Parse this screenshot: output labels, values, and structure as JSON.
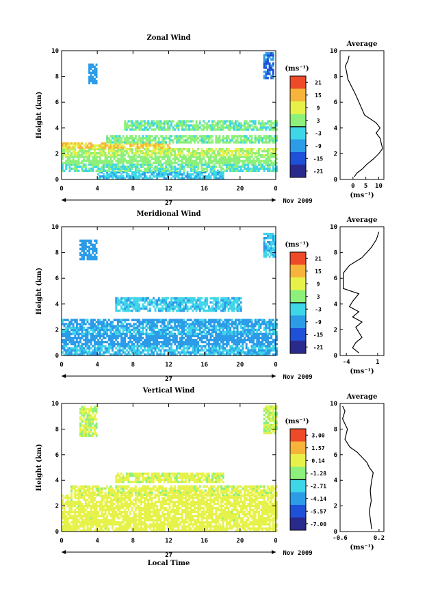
{
  "chart_data": [
    {
      "type": "heatmap",
      "title": "Zonal Wind",
      "ylabel": "Height (km)",
      "units": "(ms⁻¹)",
      "xlim": [
        0,
        24
      ],
      "ylim": [
        0,
        10
      ],
      "x_ticks": [
        "0",
        "4",
        "8",
        "12",
        "16",
        "20",
        "0"
      ],
      "y_ticks": [
        "0",
        "2",
        "4",
        "6",
        "8",
        "10"
      ],
      "date_label": "27",
      "month_label": "Nov 2009",
      "colorbar": {
        "levels": [
          "21",
          "15",
          "9",
          "3",
          "-3",
          "-9",
          "-15",
          "-21"
        ],
        "vmin": -24,
        "vmax": 24
      },
      "layers": [
        {
          "y0": 0.0,
          "y1": 0.6,
          "value": -5,
          "x0": 4,
          "x1": 18
        },
        {
          "y0": 0.6,
          "y1": 1.2,
          "value": 0,
          "x0": 0,
          "x1": 24
        },
        {
          "y0": 1.2,
          "y1": 1.8,
          "value": 3,
          "x0": 0,
          "x1": 24
        },
        {
          "y0": 1.8,
          "y1": 2.4,
          "value": 6,
          "x0": 0,
          "x1": 24
        },
        {
          "y0": 2.4,
          "y1": 2.8,
          "value": 12,
          "x0": 0,
          "x1": 12
        },
        {
          "y0": 2.8,
          "y1": 3.4,
          "value": 2,
          "x0": 5,
          "x1": 24
        },
        {
          "y0": 3.8,
          "y1": 4.6,
          "value": 1,
          "x0": 7,
          "x1": 24
        },
        {
          "y0": 7.4,
          "y1": 9.0,
          "value": -9,
          "x0": 3,
          "x1": 4
        },
        {
          "y0": 7.8,
          "y1": 9.8,
          "value": -12,
          "x0": 22.6,
          "x1": 23.6
        }
      ],
      "average": {
        "title": "Average",
        "xlim": [
          -5,
          12
        ],
        "x_ticks": [
          "0",
          "5",
          "10"
        ],
        "xlabel": "(ms⁻¹)",
        "profile": [
          {
            "h": 0.2,
            "v": 0.5
          },
          {
            "h": 0.5,
            "v": 1.5
          },
          {
            "h": 0.8,
            "v": 3.5
          },
          {
            "h": 1.2,
            "v": 5.5
          },
          {
            "h": 1.6,
            "v": 8
          },
          {
            "h": 2.0,
            "v": 10
          },
          {
            "h": 2.4,
            "v": 11.5
          },
          {
            "h": 2.8,
            "v": 11
          },
          {
            "h": 3.2,
            "v": 10.5
          },
          {
            "h": 3.6,
            "v": 9
          },
          {
            "h": 4.0,
            "v": 10.5
          },
          {
            "h": 4.4,
            "v": 9
          },
          {
            "h": 4.8,
            "v": 6
          },
          {
            "h": 5.0,
            "v": 4.5
          },
          {
            "h": 6.6,
            "v": 1
          },
          {
            "h": 7.2,
            "v": -0.5
          },
          {
            "h": 7.8,
            "v": -2
          },
          {
            "h": 8.4,
            "v": -2.5
          },
          {
            "h": 8.8,
            "v": -3
          },
          {
            "h": 9.2,
            "v": -2
          },
          {
            "h": 9.6,
            "v": -1.5
          }
        ]
      }
    },
    {
      "type": "heatmap",
      "title": "Meridional Wind",
      "ylabel": "Height (km)",
      "units": "(ms⁻¹)",
      "xlim": [
        0,
        24
      ],
      "ylim": [
        0,
        10
      ],
      "x_ticks": [
        "0",
        "4",
        "8",
        "12",
        "16",
        "20",
        "0"
      ],
      "y_ticks": [
        "0",
        "2",
        "4",
        "6",
        "8",
        "10"
      ],
      "date_label": "27",
      "month_label": "Nov 2009",
      "colorbar": {
        "levels": [
          "21",
          "15",
          "9",
          "3",
          "-3",
          "-9",
          "-15",
          "-21"
        ],
        "vmin": -24,
        "vmax": 24
      },
      "layers": [
        {
          "y0": 0.0,
          "y1": 0.8,
          "value": -6,
          "x0": 0,
          "x1": 24
        },
        {
          "y0": 0.8,
          "y1": 1.6,
          "value": -9,
          "x0": 0,
          "x1": 24
        },
        {
          "y0": 1.6,
          "y1": 2.2,
          "value": -6,
          "x0": 0,
          "x1": 24
        },
        {
          "y0": 2.2,
          "y1": 2.8,
          "value": -8,
          "x0": 0,
          "x1": 24
        },
        {
          "y0": 3.4,
          "y1": 4.4,
          "value": -5,
          "x0": 6,
          "x1": 20
        },
        {
          "y0": 7.4,
          "y1": 9.0,
          "value": -9,
          "x0": 2,
          "x1": 4
        },
        {
          "y0": 7.6,
          "y1": 9.4,
          "value": -5,
          "x0": 22.6,
          "x1": 23.8
        }
      ],
      "average": {
        "title": "Average",
        "xlim": [
          -5,
          2
        ],
        "x_ticks": [
          "-4",
          "1"
        ],
        "xlabel": "(ms⁻¹)",
        "profile": [
          {
            "h": 0.2,
            "v": -2
          },
          {
            "h": 0.6,
            "v": -3
          },
          {
            "h": 1.0,
            "v": -2.5
          },
          {
            "h": 1.4,
            "v": -1.5
          },
          {
            "h": 1.8,
            "v": -2
          },
          {
            "h": 2.2,
            "v": -2.5
          },
          {
            "h": 2.6,
            "v": -1.5
          },
          {
            "h": 3.0,
            "v": -3
          },
          {
            "h": 3.4,
            "v": -2
          },
          {
            "h": 3.8,
            "v": -3.5
          },
          {
            "h": 4.2,
            "v": -3
          },
          {
            "h": 4.8,
            "v": -2
          },
          {
            "h": 5.2,
            "v": -4.5
          },
          {
            "h": 6.4,
            "v": -4.5
          },
          {
            "h": 7.0,
            "v": -3.5
          },
          {
            "h": 7.6,
            "v": -1.5
          },
          {
            "h": 8.4,
            "v": 0
          },
          {
            "h": 9.0,
            "v": 0.8
          },
          {
            "h": 9.6,
            "v": 1.2
          }
        ]
      }
    },
    {
      "type": "heatmap",
      "title": "Vertical Wind",
      "ylabel": "Height (km)",
      "units": "(ms⁻¹)",
      "xlabel": "Local Time",
      "xlim": [
        0,
        24
      ],
      "ylim": [
        0,
        10
      ],
      "x_ticks": [
        "0",
        "4",
        "8",
        "12",
        "16",
        "20",
        "0"
      ],
      "y_ticks": [
        "0",
        "2",
        "4",
        "6",
        "8",
        "10"
      ],
      "date_label": "27",
      "month_label": "Nov 2009",
      "colorbar": {
        "levels": [
          "3.00",
          "1.57",
          "0.14",
          "-1.28",
          "-2.71",
          "-4.14",
          "-5.57",
          "-7.00"
        ],
        "vmin": -8.43,
        "vmax": 4.43
      },
      "layers": [
        {
          "y0": 0.0,
          "y1": 2.8,
          "value": 0.4,
          "x0": 0,
          "x1": 24
        },
        {
          "y0": 2.8,
          "y1": 3.6,
          "value": 0.2,
          "x0": 1,
          "x1": 24
        },
        {
          "y0": 3.8,
          "y1": 4.6,
          "value": 0.1,
          "x0": 6,
          "x1": 18
        },
        {
          "y0": 7.4,
          "y1": 9.8,
          "value": -0.3,
          "x0": 2,
          "x1": 4
        },
        {
          "y0": 7.6,
          "y1": 9.8,
          "value": -0.4,
          "x0": 22.6,
          "x1": 24
        }
      ],
      "average": {
        "title": "Average",
        "xlim": [
          -0.6,
          0.3
        ],
        "x_ticks": [
          "-0.6",
          "0.2"
        ],
        "xlabel": "(ms⁻¹)",
        "profile": [
          {
            "h": 0.2,
            "v": 0.05
          },
          {
            "h": 1.0,
            "v": 0.02
          },
          {
            "h": 1.6,
            "v": 0.0
          },
          {
            "h": 2.4,
            "v": 0.04
          },
          {
            "h": 3.2,
            "v": 0.02
          },
          {
            "h": 4.0,
            "v": 0.05
          },
          {
            "h": 4.6,
            "v": 0.08
          },
          {
            "h": 5.0,
            "v": 0.0
          },
          {
            "h": 5.4,
            "v": -0.05
          },
          {
            "h": 5.8,
            "v": -0.15
          },
          {
            "h": 6.2,
            "v": -0.25
          },
          {
            "h": 6.6,
            "v": -0.4
          },
          {
            "h": 7.2,
            "v": -0.5
          },
          {
            "h": 8.0,
            "v": -0.45
          },
          {
            "h": 8.8,
            "v": -0.55
          },
          {
            "h": 9.4,
            "v": -0.5
          },
          {
            "h": 9.8,
            "v": -0.55
          }
        ]
      }
    }
  ]
}
